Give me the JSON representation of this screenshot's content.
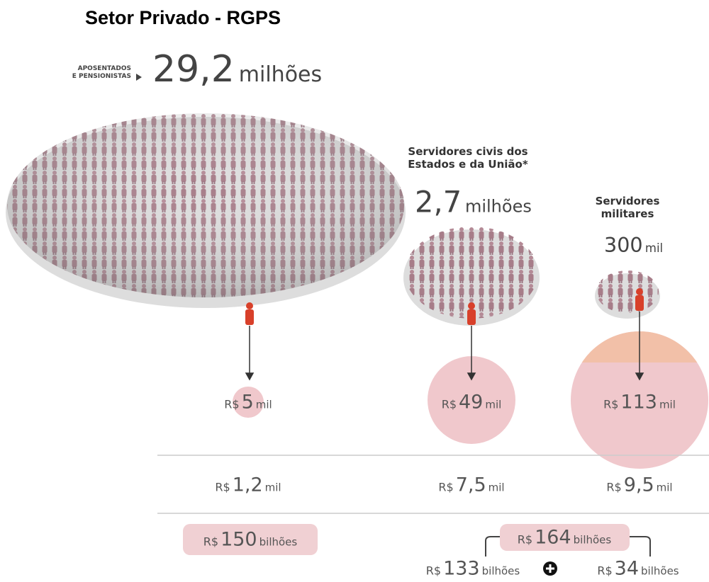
{
  "title": "Setor Privado - RGPS",
  "currency": "R$",
  "groups": [
    {
      "label_lines": [
        "APOSENTADOS",
        "E PENSIONISTAS"
      ],
      "count": "29,2",
      "count_unit": "milhões",
      "avg_value": "5",
      "avg_unit": "mil",
      "second_value": "1,2",
      "second_unit": "mil",
      "total_value": "150",
      "total_unit": "bilhões"
    },
    {
      "label_lines": [
        "Servidores civis dos",
        "Estados e da União*"
      ],
      "count": "2,7",
      "count_unit": "milhões",
      "avg_value": "49",
      "avg_unit": "mil",
      "second_value": "7,5",
      "second_unit": "mil",
      "total_value": "133",
      "total_unit": "bilhões"
    },
    {
      "label_lines": [
        "Servidores",
        "militares"
      ],
      "count": "300",
      "count_unit": "mil",
      "avg_value": "113",
      "avg_unit": "mil",
      "second_value": "9,5",
      "second_unit": "mil",
      "total_value": "34",
      "total_unit": "bilhões"
    }
  ],
  "combined_total": {
    "value": "164",
    "unit": "bilhões"
  }
}
